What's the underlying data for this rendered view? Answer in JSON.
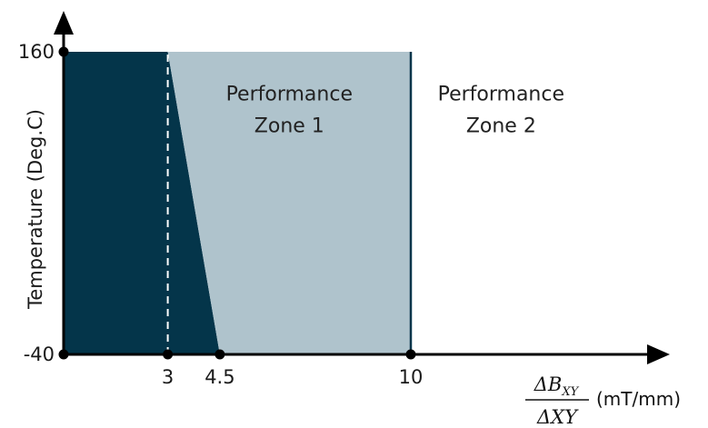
{
  "chart_data": {
    "type": "area",
    "title": "",
    "ylabel": "Temperature (Deg.C)",
    "xlabel": {
      "numerator": "ΔB",
      "numerator_sub": "XY",
      "denominator": "ΔXY",
      "unit": "(mT/mm)"
    },
    "xlim": [
      0,
      14.5
    ],
    "ylim": [
      -40,
      160
    ],
    "x_ticks": [
      {
        "value": 3,
        "label": "3"
      },
      {
        "value": 4.5,
        "label": "4.5"
      },
      {
        "value": 10,
        "label": "10"
      }
    ],
    "y_ticks": [
      {
        "value": -40,
        "label": "-40"
      },
      {
        "value": 160,
        "label": "160"
      }
    ],
    "regions": [
      {
        "id": "dark-region",
        "color": "#04354A",
        "polygon": [
          [
            0,
            -40
          ],
          [
            0,
            160
          ],
          [
            3,
            160
          ],
          [
            4.5,
            -40
          ]
        ]
      },
      {
        "id": "zone-1",
        "color": "#AFC3CC",
        "polygon": [
          [
            3,
            160
          ],
          [
            10,
            160
          ],
          [
            10,
            -40
          ],
          [
            4.5,
            -40
          ]
        ]
      }
    ],
    "boundary_line": {
      "x": 10,
      "ylim": [
        -40,
        160
      ],
      "color": "#04354A"
    },
    "dashed_line": {
      "x": 3,
      "ylim": [
        -40,
        160
      ],
      "color": "#ffffff"
    },
    "zone_labels": [
      {
        "lines": [
          "Performance",
          "Zone 1"
        ],
        "x": 6.5,
        "y": 128
      },
      {
        "lines": [
          "Performance",
          "Zone 2"
        ],
        "x": 12.6,
        "y": 128
      }
    ],
    "grid": false,
    "legend": "none"
  }
}
